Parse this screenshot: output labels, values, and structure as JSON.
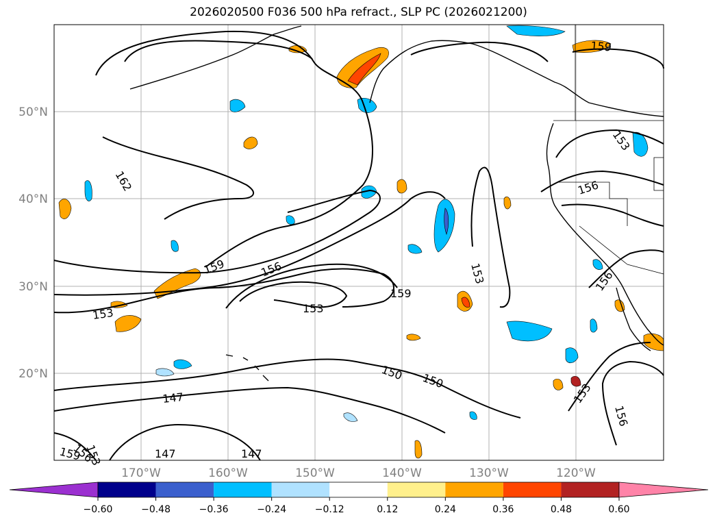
{
  "title": "2026020500 F036 500 hPa refract., SLP PC (2026021200)",
  "lon_labels": [
    "170°W",
    "160°W",
    "150°W",
    "140°W",
    "130°W",
    "120°W"
  ],
  "lat_labels": [
    "50°N",
    "40°N",
    "30°N",
    "20°N"
  ],
  "contour_labels": [
    "162",
    "159",
    "156",
    "153",
    "159",
    "153",
    "153",
    "150",
    "147",
    "147",
    "147",
    "153",
    "156",
    "159",
    "156",
    "153",
    "156",
    "150",
    "153",
    "156",
    "159"
  ],
  "colorbar": {
    "ticks": [
      "−0.60",
      "−0.48",
      "−0.36",
      "−0.24",
      "−0.12",
      "0.12",
      "0.24",
      "0.36",
      "0.48",
      "0.60"
    ],
    "colors": {
      "under": "#9b30d0",
      "bins": [
        "#00008b",
        "#3a5fcd",
        "#00bfff",
        "#b0e2ff",
        "#ffffff",
        "#fff08c",
        "#ffa500",
        "#ff4500",
        "#b22222",
        "#ff83a8"
      ]
    }
  },
  "chart_data": {
    "type": "map",
    "title": "2026020500 F036 500 hPa refract., SLP PC (2026021200)",
    "field": "500 hPa refractivity anomaly (shaded), SLP principal component (contours)",
    "lon_range": [
      -180,
      -110
    ],
    "lat_range": [
      10,
      60
    ],
    "contour_levels": [
      147,
      150,
      153,
      156,
      159,
      162
    ],
    "colorbar_bounds": [
      -0.6,
      -0.48,
      -0.36,
      -0.24,
      -0.12,
      0.12,
      0.24,
      0.36,
      0.48,
      0.6
    ]
  }
}
